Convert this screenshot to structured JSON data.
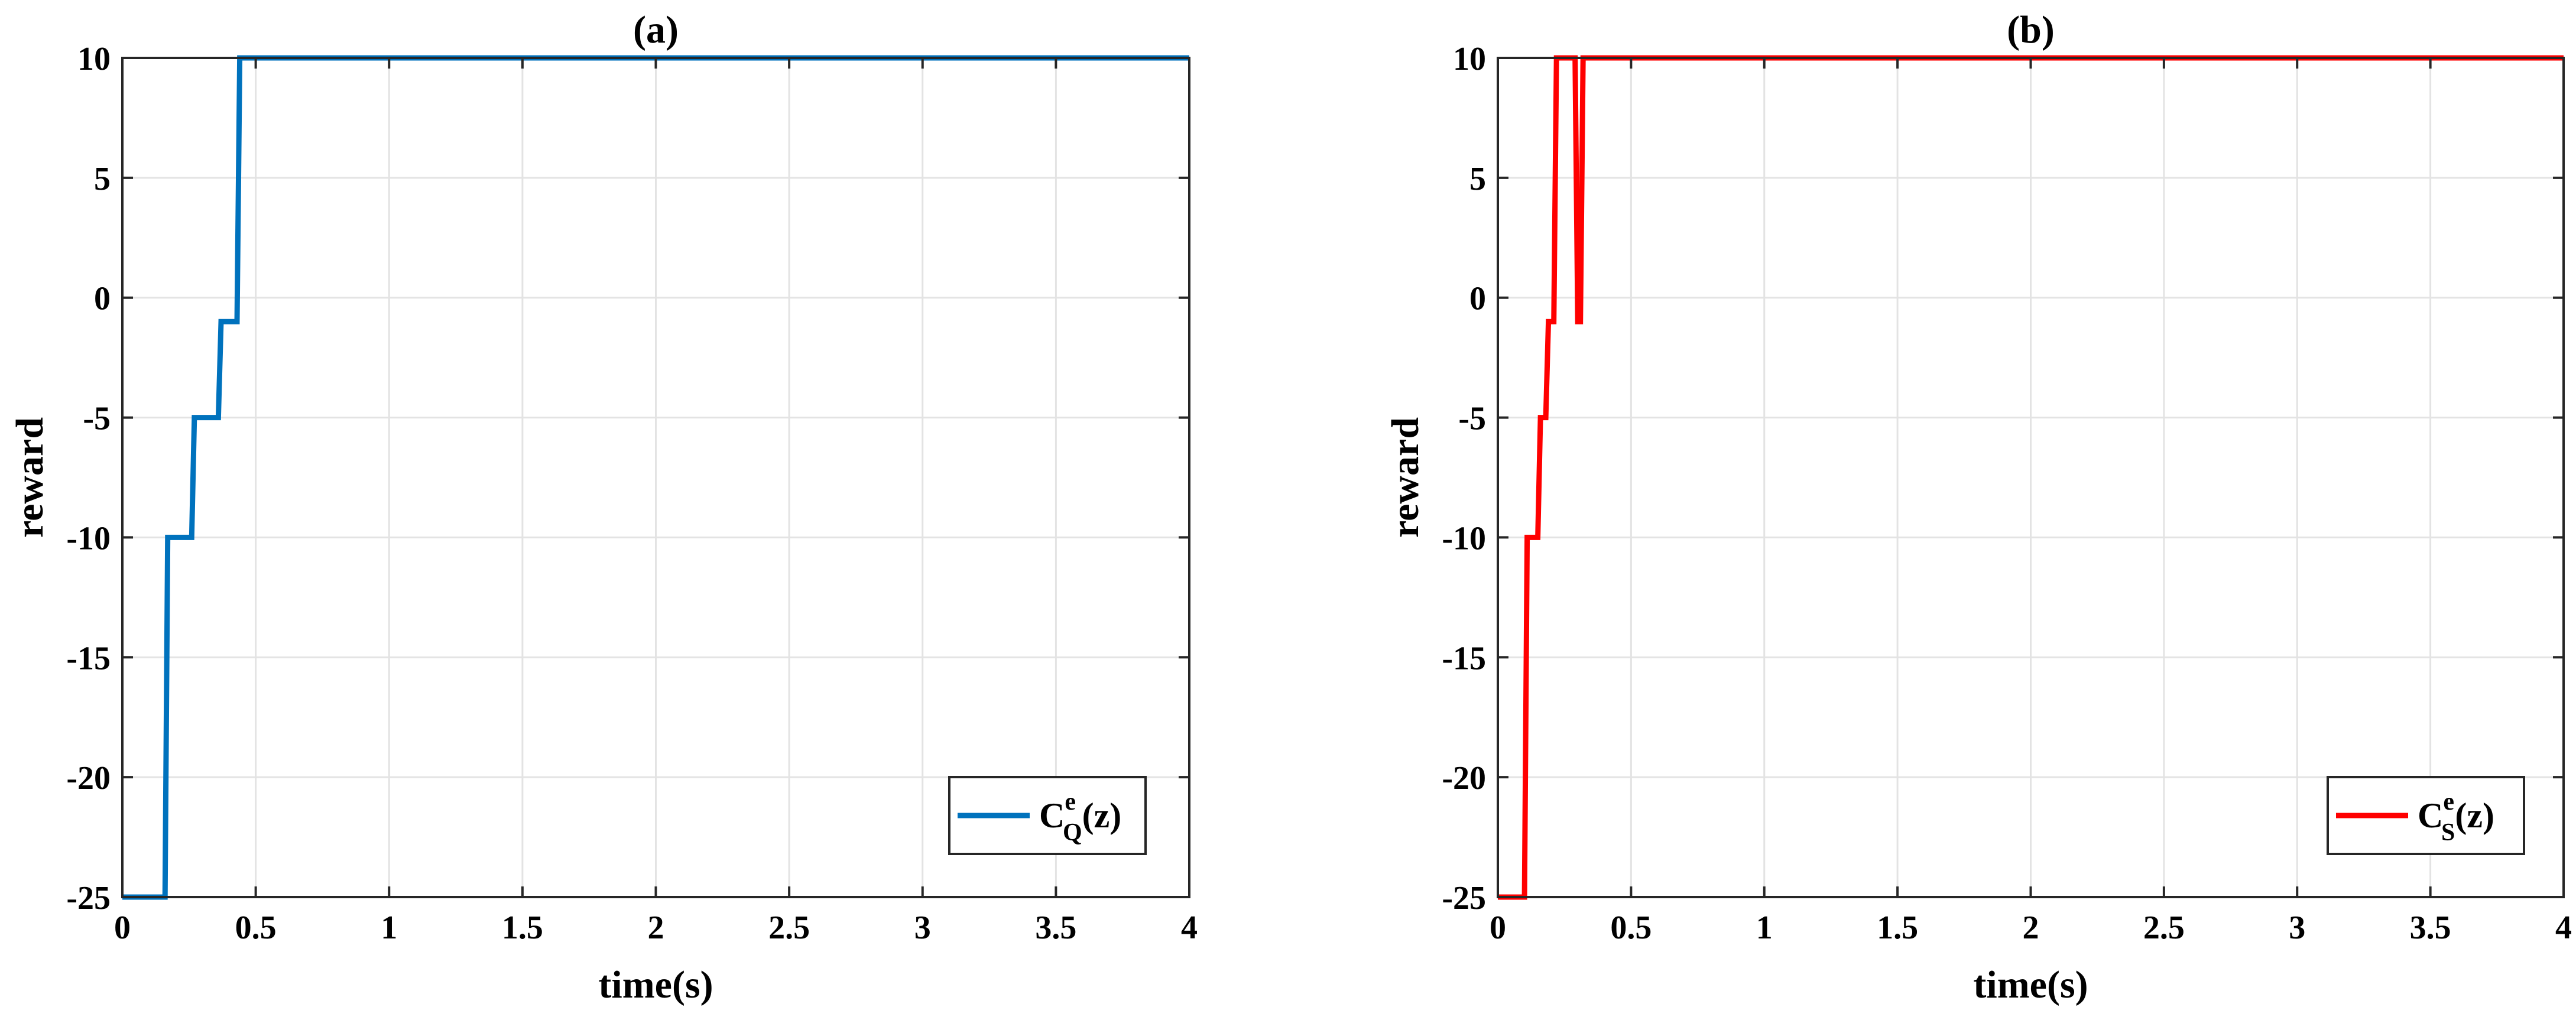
{
  "chart_data": [
    {
      "type": "line",
      "title": "(a)",
      "xlabel": "time(s)",
      "ylabel": "reward",
      "xlim": [
        0,
        4
      ],
      "ylim": [
        -25,
        10
      ],
      "xticks": [
        "0",
        "0.5",
        "1",
        "1.5",
        "2",
        "2.5",
        "3",
        "3.5",
        "4"
      ],
      "yticks": [
        "10",
        "5",
        "0",
        "-5",
        "-10",
        "-15",
        "-20",
        "-25"
      ],
      "grid": true,
      "legend_position": "bottom-right",
      "series": [
        {
          "name": "C_Q^e(z)",
          "legend": {
            "main": "C",
            "sup": "e",
            "sub": "Q",
            "suffix": "(z)"
          },
          "color": "#0072BD",
          "x": [
            0,
            0.16,
            0.17,
            0.26,
            0.27,
            0.36,
            0.37,
            0.43,
            0.44,
            4
          ],
          "y": [
            -25,
            -25,
            -10,
            -10,
            -5,
            -5,
            -1,
            -1,
            10,
            10
          ]
        }
      ]
    },
    {
      "type": "line",
      "title": "(b)",
      "xlabel": "time(s)",
      "ylabel": "reward",
      "xlim": [
        0,
        4
      ],
      "ylim": [
        -25,
        10
      ],
      "xticks": [
        "0",
        "0.5",
        "1",
        "1.5",
        "2",
        "2.5",
        "3",
        "3.5",
        "4"
      ],
      "yticks": [
        "10",
        "5",
        "0",
        "-5",
        "-10",
        "-15",
        "-20",
        "-25"
      ],
      "grid": true,
      "legend_position": "bottom-right",
      "series": [
        {
          "name": "C_S^e(z)",
          "legend": {
            "main": "C",
            "sup": "e",
            "sub": "S",
            "suffix": "(z)"
          },
          "color": "#FF0000",
          "x": [
            0,
            0.1,
            0.11,
            0.15,
            0.16,
            0.18,
            0.19,
            0.21,
            0.22,
            0.29,
            0.3,
            0.31,
            0.32,
            4
          ],
          "y": [
            -25,
            -25,
            -10,
            -10,
            -5,
            -5,
            -1,
            -1,
            10,
            10,
            -1,
            -1,
            10,
            10
          ]
        }
      ]
    }
  ]
}
